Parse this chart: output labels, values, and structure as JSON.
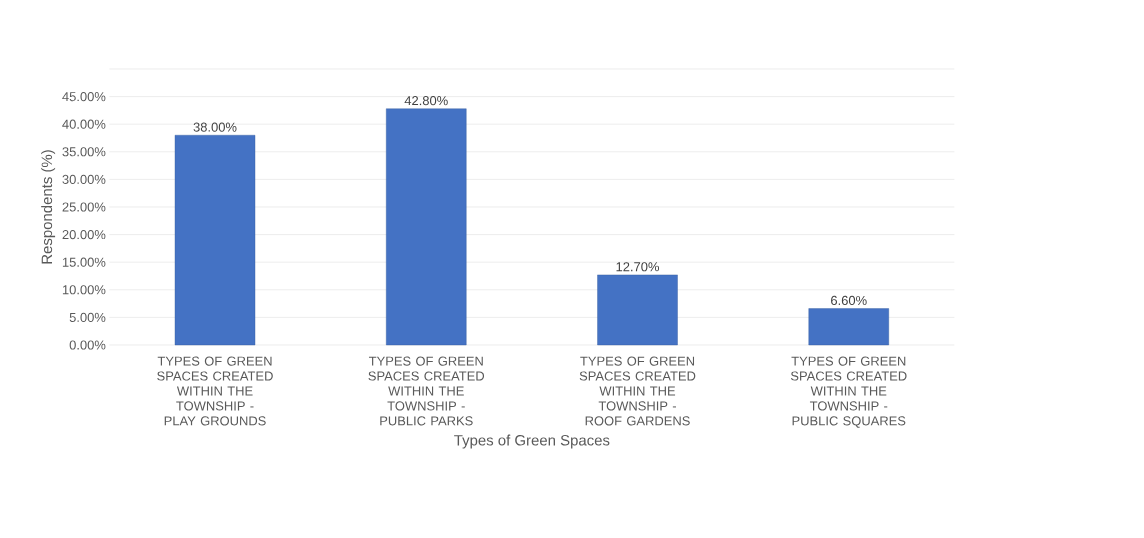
{
  "chart_data": {
    "type": "bar",
    "xlabel": "Types of Green Spaces",
    "ylabel": "Respondents (%)",
    "categories": [
      "TYPES OF GREEN SPACES CREATED WITHIN THE TOWNSHIP - PLAY GROUNDS",
      "TYPES OF GREEN SPACES CREATED WITHIN THE TOWNSHIP - PUBLIC PARKS",
      "TYPES OF GREEN SPACES CREATED WITHIN THE TOWNSHIP - ROOF GARDENS",
      "TYPES OF GREEN SPACES CREATED WITHIN THE TOWNSHIP - PUBLIC SQUARES"
    ],
    "values": [
      38.0,
      42.8,
      12.7,
      6.6
    ],
    "value_labels": [
      "38.00%",
      "42.80%",
      "12.70%",
      "6.60%"
    ],
    "color": "#4472c4",
    "ylim": [
      0,
      50
    ],
    "yticks": [
      {
        "value": 0,
        "label": "0.00%"
      },
      {
        "value": 5,
        "label": "5.00%"
      },
      {
        "value": 10,
        "label": "10.00%"
      },
      {
        "value": 15,
        "label": "15.00%"
      },
      {
        "value": 20,
        "label": "20.00%"
      },
      {
        "value": 25,
        "label": "25.00%"
      },
      {
        "value": 30,
        "label": "30.00%"
      },
      {
        "value": 35,
        "label": "35.00%"
      },
      {
        "value": 40,
        "label": "40.00%"
      },
      {
        "value": 45,
        "label": "45.00%"
      },
      {
        "value": 50,
        "label": null
      }
    ],
    "grid": "y"
  }
}
